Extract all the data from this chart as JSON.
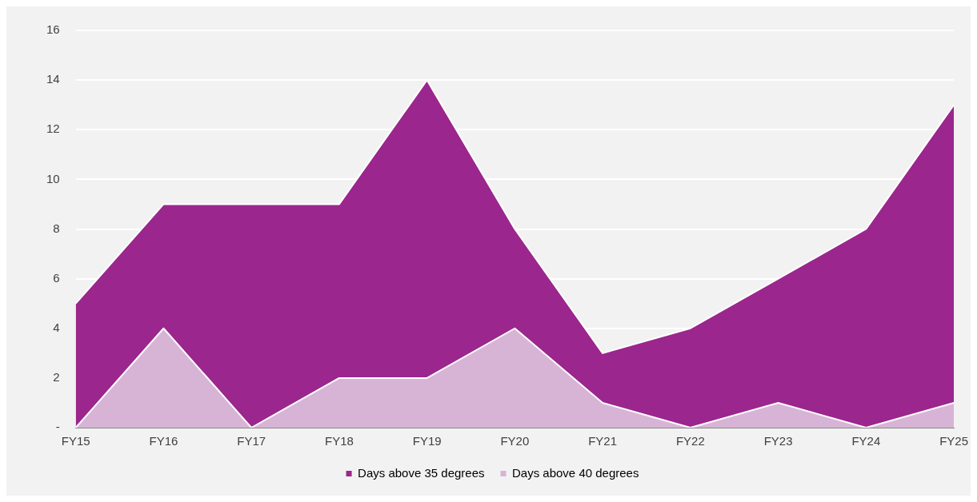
{
  "chart_data": {
    "type": "area",
    "categories": [
      "FY15",
      "FY16",
      "FY17",
      "FY18",
      "FY19",
      "FY20",
      "FY21",
      "FY22",
      "FY23",
      "FY24",
      "FY25"
    ],
    "series": [
      {
        "name": "Days above 35 degrees",
        "color": "#9b268d",
        "values": [
          5,
          9,
          9,
          9,
          14,
          8,
          3,
          4,
          6,
          8,
          13
        ]
      },
      {
        "name": "Days above 40 degrees",
        "color": "#d7b4d6",
        "values": [
          0,
          4,
          0,
          2,
          2,
          4,
          1,
          0,
          1,
          0,
          1
        ]
      }
    ],
    "ylim": [
      0,
      16
    ],
    "yticks": [
      {
        "value": 0,
        "label": "-"
      },
      2,
      4,
      6,
      8,
      10,
      12,
      14,
      16
    ],
    "grid": "y",
    "legend": "bottom",
    "marker": "none"
  }
}
